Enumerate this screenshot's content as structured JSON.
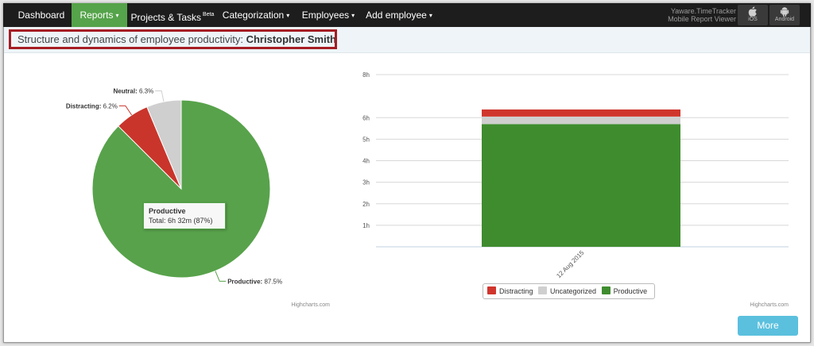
{
  "nav": {
    "items": [
      {
        "label": "Dashboard",
        "caret": "",
        "beta": ""
      },
      {
        "label": "Reports",
        "caret": "▾",
        "beta": ""
      },
      {
        "label": "Projects & Tasks",
        "caret": "",
        "beta": "Beta"
      },
      {
        "label": "Categorization",
        "caret": "▾",
        "beta": ""
      },
      {
        "label": "Employees",
        "caret": "▾",
        "beta": ""
      },
      {
        "label": "Add employee",
        "caret": "▾",
        "beta": ""
      }
    ],
    "brand_line1": "Yaware.TimeTracker",
    "brand_line2": "Mobile Report Viewer",
    "ios_label": "iOS",
    "android_label": "Android",
    "ios_icon": "apple-icon",
    "android_icon": "android-icon"
  },
  "header": {
    "title_prefix": "Structure and dynamics of employee productivity: ",
    "employee_name": "Christopher Smith"
  },
  "chart_data": [
    {
      "type": "pie",
      "labels": [
        "Productive",
        "Distracting",
        "Neutral"
      ],
      "values": [
        87.5,
        6.2,
        6.3
      ],
      "colors": [
        "#58a24b",
        "#c9352b",
        "#cfcfcf"
      ],
      "data_labels": [
        {
          "name": "Productive",
          "text": "87.5%"
        },
        {
          "name": "Distracting",
          "text": "6.2%"
        },
        {
          "name": "Neutral",
          "text": "6.3%"
        }
      ],
      "tooltip": {
        "title": "Productive",
        "line": "Total: 6h 32m (87%)"
      },
      "credit": "Highcharts.com"
    },
    {
      "type": "bar",
      "stacked": true,
      "categories": [
        "12 Aug 2015"
      ],
      "series": [
        {
          "name": "Productive",
          "values": [
            5.7
          ],
          "color": "#3f8c2f"
        },
        {
          "name": "Uncategorized",
          "values": [
            0.35
          ],
          "color": "#cfcfcf"
        },
        {
          "name": "Distracting",
          "values": [
            0.33
          ],
          "color": "#d0352c"
        }
      ],
      "legend_order": [
        "Distracting",
        "Uncategorized",
        "Productive"
      ],
      "ylim": [
        0,
        8
      ],
      "yticks": [
        "1h",
        "2h",
        "3h",
        "4h",
        "5h",
        "6h",
        "8h"
      ],
      "ytick_values": [
        1,
        2,
        3,
        4,
        5,
        6,
        8
      ],
      "legend_position": "bottom",
      "grid": true,
      "credit": "Highcharts.com"
    }
  ],
  "more_button": "More"
}
